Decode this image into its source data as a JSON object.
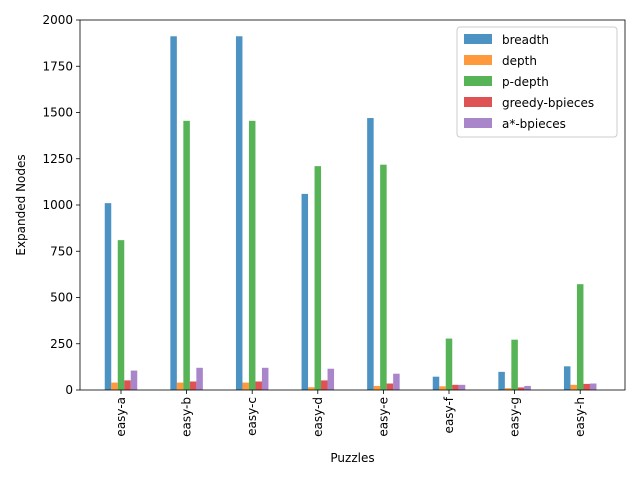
{
  "chart_data": {
    "type": "bar",
    "xlabel": "Puzzles",
    "ylabel": "Expanded Nodes",
    "ylim": [
      0,
      2000
    ],
    "yticks": [
      0,
      250,
      500,
      750,
      1000,
      1250,
      1500,
      1750,
      2000
    ],
    "categories": [
      "easy-a",
      "easy-b",
      "easy-c",
      "easy-d",
      "easy-e",
      "easy-f",
      "easy-g",
      "easy-h"
    ],
    "legend_position": "top-right",
    "series": [
      {
        "name": "breadth",
        "color": "#1f77b4",
        "values": [
          1010,
          1912,
          1912,
          1060,
          1470,
          72,
          98,
          128
        ]
      },
      {
        "name": "depth",
        "color": "#ff7f0e",
        "values": [
          40,
          40,
          40,
          15,
          22,
          20,
          10,
          28
        ]
      },
      {
        "name": "p-depth",
        "color": "#2ca02c",
        "values": [
          810,
          1455,
          1455,
          1210,
          1218,
          278,
          272,
          572
        ]
      },
      {
        "name": "greedy-bpieces",
        "color": "#d62728",
        "values": [
          52,
          46,
          46,
          52,
          35,
          28,
          14,
          33
        ]
      },
      {
        "name": "a*-bpieces",
        "color": "#9467bd",
        "values": [
          105,
          120,
          120,
          115,
          88,
          28,
          22,
          35
        ]
      }
    ]
  }
}
